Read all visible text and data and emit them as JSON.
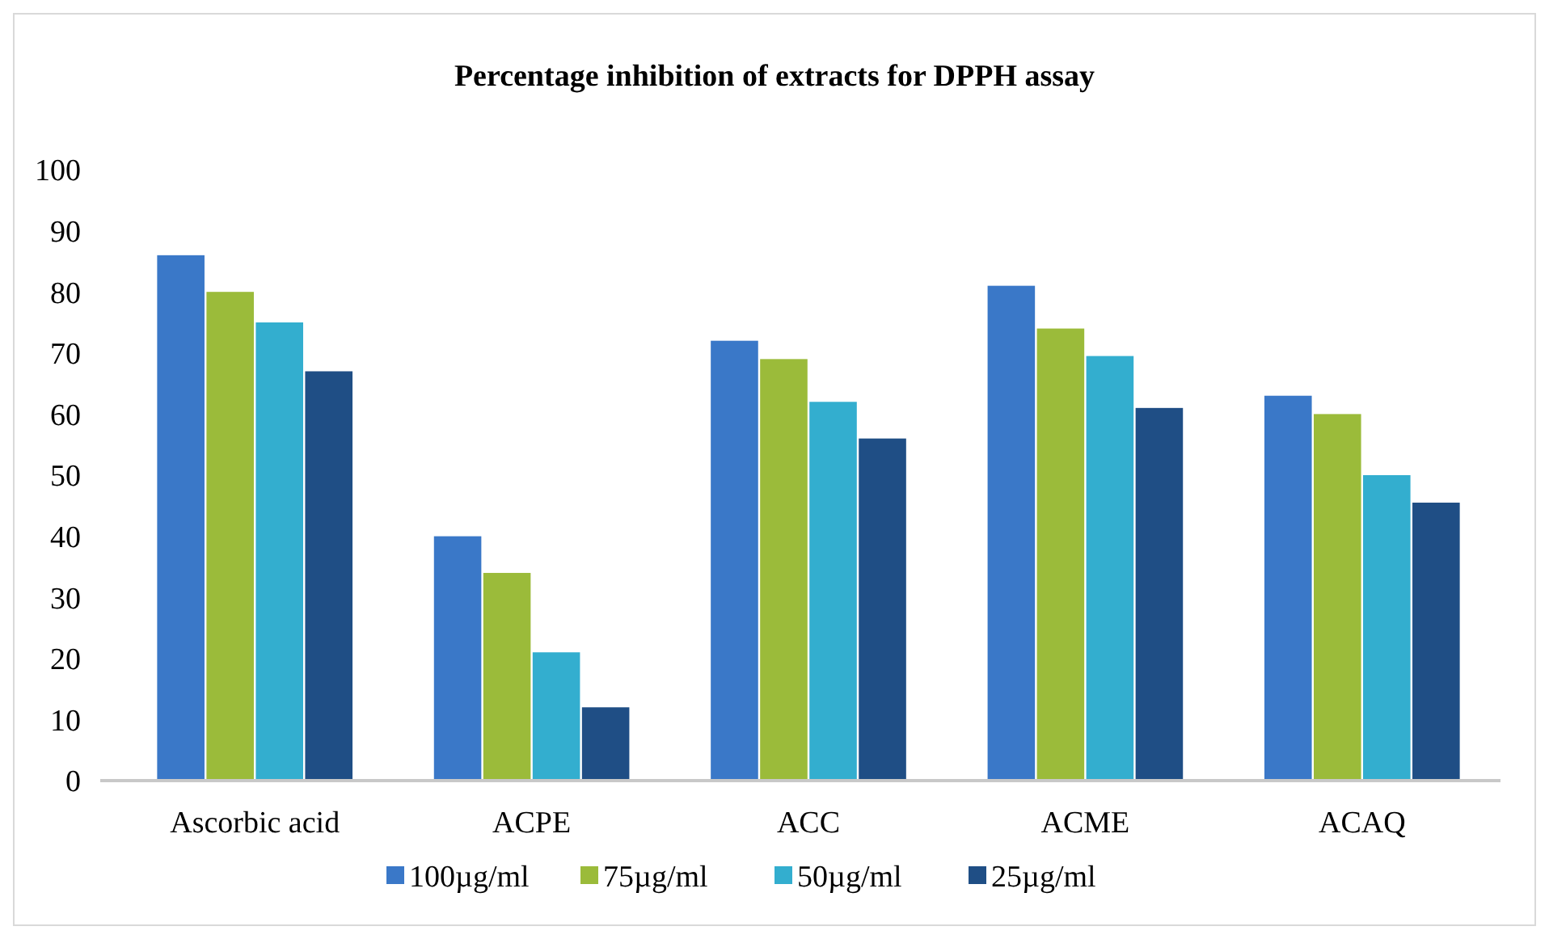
{
  "chart_data": {
    "type": "bar",
    "title": "Percentage inhibition of extracts for DPPH assay",
    "categories": [
      "Ascorbic acid",
      "ACPE",
      "ACC",
      "ACME",
      "ACAQ"
    ],
    "series": [
      {
        "name": "100µg/ml",
        "color": "#3a78c8",
        "values": [
          86,
          40,
          72,
          81,
          63
        ]
      },
      {
        "name": "75µg/ml",
        "color": "#9bbb3a",
        "values": [
          80,
          34,
          69,
          74,
          60
        ]
      },
      {
        "name": "50µg/ml",
        "color": "#33aecf",
        "values": [
          75,
          21,
          62,
          69.5,
          50
        ]
      },
      {
        "name": "25µg/ml",
        "color": "#1f4e85",
        "values": [
          67,
          12,
          56,
          61,
          45.5
        ]
      }
    ],
    "ylim": [
      0,
      100
    ],
    "yticks": [
      0,
      10,
      20,
      30,
      40,
      50,
      60,
      70,
      80,
      90,
      100
    ],
    "grid": false,
    "legend": "bottom"
  }
}
